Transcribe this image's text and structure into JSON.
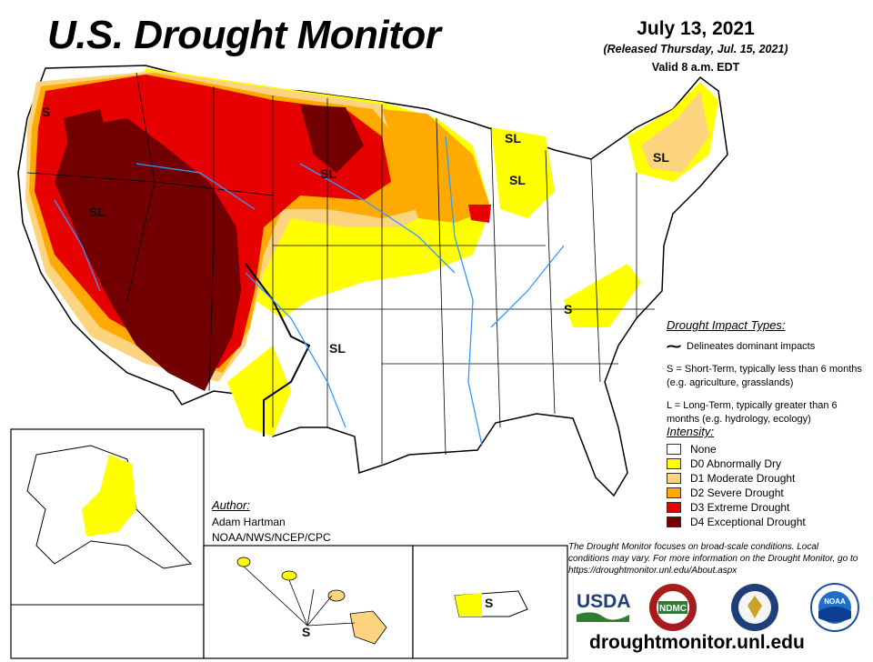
{
  "header": {
    "title": "U.S. Drought Monitor",
    "date": "July 13, 2021",
    "released": "(Released Thursday, Jul. 15, 2021)",
    "valid": "Valid 8 a.m. EDT"
  },
  "impact_types": {
    "heading": "Drought Impact Types:",
    "delineates": "Delineates dominant impacts",
    "short_term": "S = Short-Term, typically less than 6 months (e.g. agriculture, grasslands)",
    "long_term": "L = Long-Term, typically greater than 6 months (e.g. hydrology, ecology)"
  },
  "intensity": {
    "heading": "Intensity:",
    "items": [
      {
        "label": "None",
        "color": "#ffffff"
      },
      {
        "label": "D0 Abnormally Dry",
        "color": "#ffff00"
      },
      {
        "label": "D1 Moderate Drought",
        "color": "#fcd37f"
      },
      {
        "label": "D2 Severe Drought",
        "color": "#ffaa00"
      },
      {
        "label": "D3 Extreme Drought",
        "color": "#e60000"
      },
      {
        "label": "D4 Exceptional Drought",
        "color": "#730000"
      }
    ]
  },
  "author": {
    "heading": "Author:",
    "name": "Adam Hartman",
    "org": "NOAA/NWS/NCEP/CPC"
  },
  "disclaimer": "The Drought Monitor focuses on broad-scale conditions. Local conditions may vary. For more information on the Drought Monitor, go to https://droughtmonitor.unl.edu/About.aspx",
  "map_labels": {
    "sl": "SL",
    "s": "S"
  },
  "logos": {
    "usda": "USDA",
    "ndmc": "NDMC",
    "noaa": "NOAA"
  },
  "website": "droughtmonitor.unl.edu"
}
